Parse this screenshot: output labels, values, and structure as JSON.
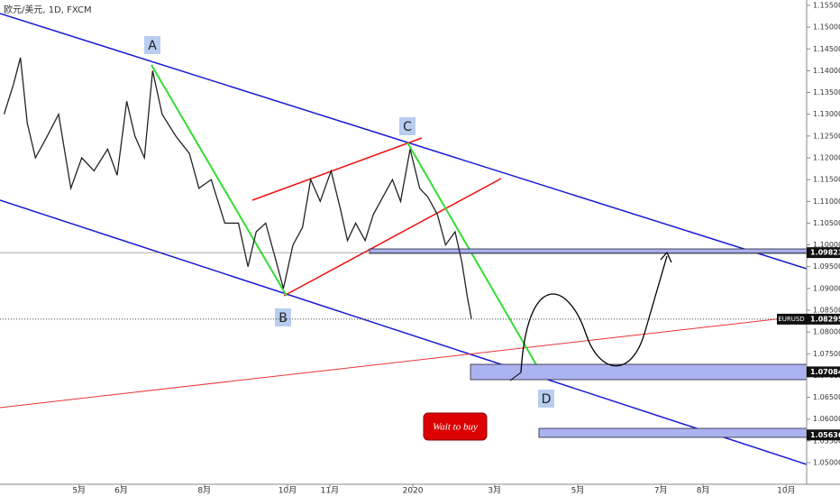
{
  "chart_data": {
    "type": "line",
    "title": "欧元/美元, 1D, FXCM",
    "symbol": "EURUSD",
    "color": "#222222",
    "x": [
      -55,
      -48,
      -43,
      -38,
      -32,
      -25,
      -15,
      -6,
      2,
      11,
      21,
      28,
      35,
      41,
      48,
      54,
      61,
      71,
      81,
      88,
      97,
      107,
      117,
      124,
      130,
      137,
      144,
      150,
      157,
      164,
      170,
      177,
      185,
      192,
      197,
      203,
      210,
      216,
      223,
      230,
      236,
      243,
      250,
      256,
      263,
      269,
      276,
      281,
      285,
      288
    ],
    "values": [
      1.13,
      1.137,
      1.143,
      1.128,
      1.12,
      1.124,
      1.13,
      1.113,
      1.12,
      1.117,
      1.122,
      1.116,
      1.133,
      1.125,
      1.12,
      1.14,
      1.13,
      1.125,
      1.121,
      1.113,
      1.115,
      1.105,
      1.105,
      1.095,
      1.103,
      1.105,
      1.097,
      1.09,
      1.1,
      1.104,
      1.115,
      1.11,
      1.117,
      1.108,
      1.101,
      1.105,
      1.101,
      1.107,
      1.111,
      1.115,
      1.11,
      1.122,
      1.113,
      1.111,
      1.107,
      1.1,
      1.103,
      1.096,
      1.088,
      1.083
    ],
    "last_price": 1.08295,
    "levels": [
      1.09823,
      1.07084,
      1.05636
    ],
    "xlim": [
      -58,
      534
    ],
    "ylim": [
      1.05,
      1.155
    ],
    "xticks": [
      {
        "value": 0,
        "label": "5月"
      },
      {
        "value": 31,
        "label": "6月"
      },
      {
        "value": 92,
        "label": "8月"
      },
      {
        "value": 153,
        "label": "10月"
      },
      {
        "value": 184,
        "label": "11月"
      },
      {
        "value": 245,
        "label": "2020"
      },
      {
        "value": 305,
        "label": "3月"
      },
      {
        "value": 366,
        "label": "5月"
      },
      {
        "value": 427,
        "label": "7月"
      },
      {
        "value": 458,
        "label": "8月"
      },
      {
        "value": 519,
        "label": "10月"
      }
    ],
    "yticks": [
      {
        "value": 1.05,
        "label": "1.05000"
      },
      {
        "value": 1.055,
        "label": "1.05500"
      },
      {
        "value": 1.06,
        "label": "1.06000"
      },
      {
        "value": 1.065,
        "label": "1.06500"
      },
      {
        "value": 1.07,
        "label": "1.07000"
      },
      {
        "value": 1.075,
        "label": "1.07500"
      },
      {
        "value": 1.08,
        "label": "1.08000"
      },
      {
        "value": 1.085,
        "label": "1.08500"
      },
      {
        "value": 1.09,
        "label": "1.09000"
      },
      {
        "value": 1.095,
        "label": "1.09500"
      },
      {
        "value": 1.1,
        "label": "1.10000"
      },
      {
        "value": 1.105,
        "label": "1.10500"
      },
      {
        "value": 1.11,
        "label": "1.11000"
      },
      {
        "value": 1.115,
        "label": "1.11500"
      },
      {
        "value": 1.12,
        "label": "1.12000"
      },
      {
        "value": 1.125,
        "label": "1.12500"
      },
      {
        "value": 1.13,
        "label": "1.13000"
      },
      {
        "value": 1.135,
        "label": "1.13500"
      },
      {
        "value": 1.14,
        "label": "1.14000"
      },
      {
        "value": 1.145,
        "label": "1.14500"
      },
      {
        "value": 1.15,
        "label": "1.15000"
      },
      {
        "value": 1.155,
        "label": "1.15500"
      }
    ],
    "annotations": [
      "A",
      "B",
      "C",
      "D",
      "Wait to buy"
    ]
  }
}
